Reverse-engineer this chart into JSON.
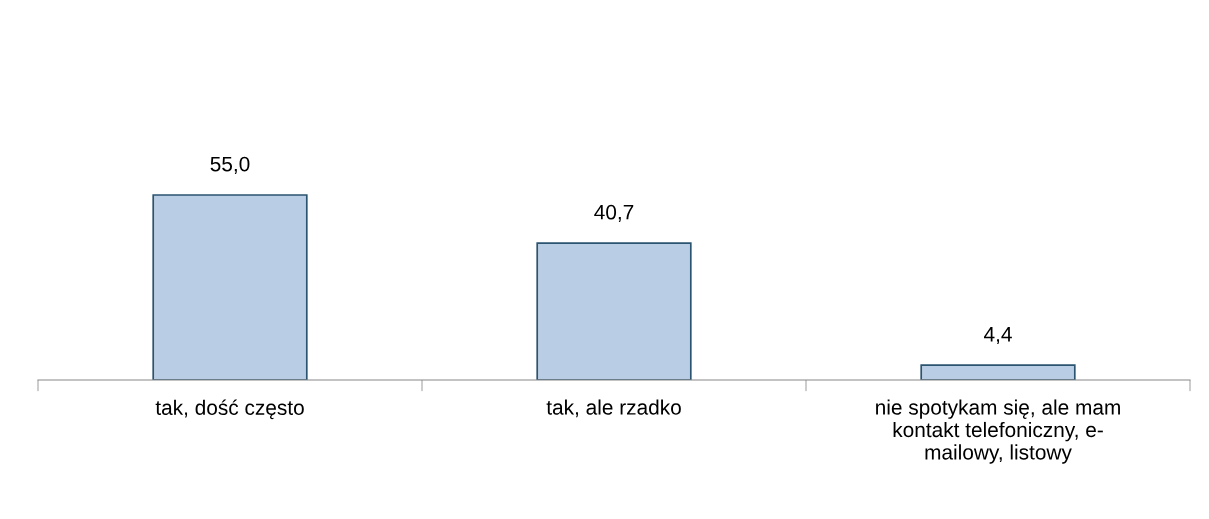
{
  "chart_data": {
    "type": "bar",
    "categories": [
      "tak, dość często",
      "tak, ale rzadko",
      "nie spotykam się, ale mam\nkontakt telefoniczny, e-\nmailowy, listowy"
    ],
    "values": [
      55.0,
      40.7,
      4.4
    ],
    "value_labels": [
      "55,0",
      "40,7",
      "4,4"
    ],
    "color": "#b9cde5",
    "grid": false,
    "legend": false
  }
}
